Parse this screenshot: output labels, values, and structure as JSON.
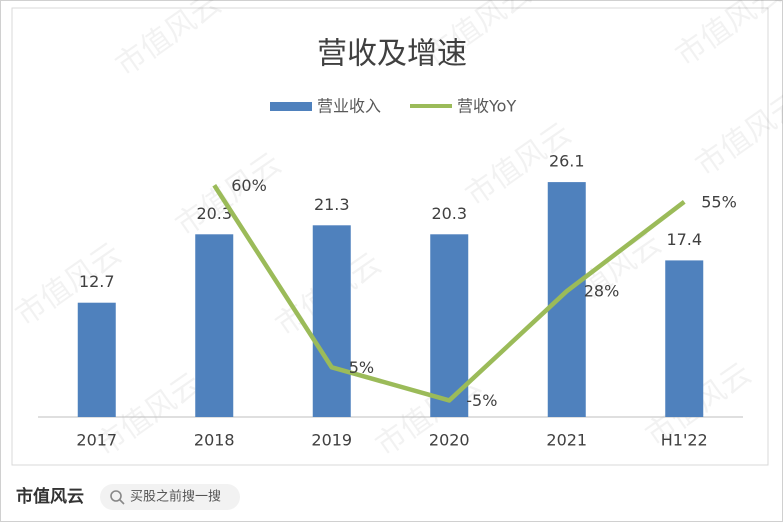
{
  "chart_data": {
    "type": "bar_line",
    "title": "营收及增速",
    "categories": [
      "2017",
      "2018",
      "2019",
      "2020",
      "2021",
      "H1'22"
    ],
    "series": [
      {
        "name": "营业收入",
        "type": "bar",
        "color": "#4f81bd",
        "values": [
          12.7,
          20.3,
          21.3,
          20.3,
          26.1,
          17.4
        ]
      },
      {
        "name": "营收YoY",
        "type": "line",
        "axis": "y2",
        "color": "#9bbb59",
        "values": [
          null,
          60,
          5,
          -5,
          28,
          55
        ],
        "value_labels": [
          null,
          "60%",
          "5%",
          "-5%",
          "28%",
          "55%"
        ]
      }
    ],
    "ylim": [
      0,
      32
    ],
    "y2lim": [
      -10,
      77
    ],
    "legend": "top",
    "watermark": "市值风云",
    "footer": {
      "brand": "市值风云",
      "search": "买股之前搜一搜"
    }
  }
}
